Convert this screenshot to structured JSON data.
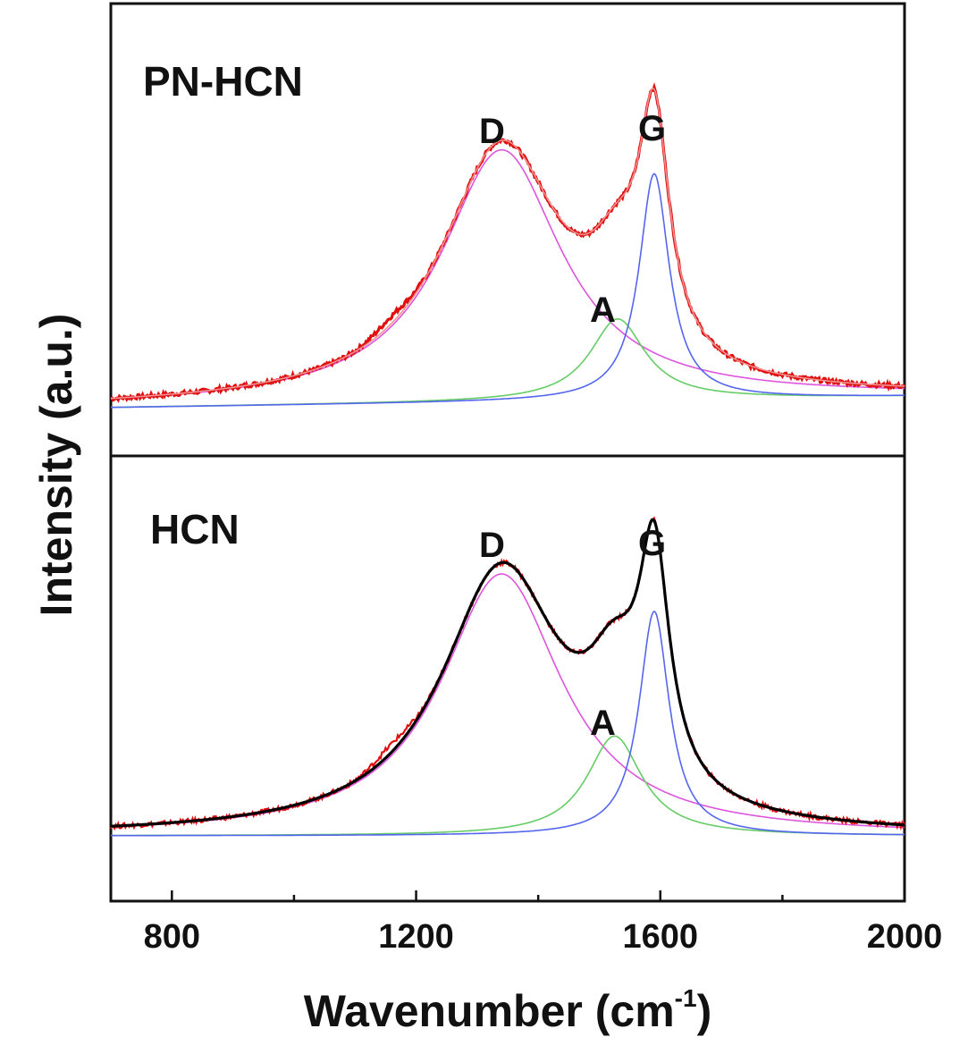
{
  "chart_data": {
    "type": "line",
    "xlabel": "Wavenumber (cm",
    "xlabel_sup": "-1",
    "xlabel_tail": ")",
    "ylabel": "Intensity (a.u.)",
    "xlim": [
      700,
      2000
    ],
    "xticks": [
      "800",
      "1200",
      "1600",
      "2000"
    ],
    "grid": false,
    "panels": [
      {
        "label": "PN-HCN",
        "peak_labels": [
          {
            "text": "D",
            "x": 1340
          },
          {
            "text": "A",
            "x": 1525
          },
          {
            "text": "G",
            "x": 1590
          }
        ],
        "components": [
          {
            "peak": "D",
            "center": 1340,
            "hwhm": 120,
            "amplitude": 0.68,
            "color": "#dd55dd"
          },
          {
            "peak": "A",
            "center": 1530,
            "hwhm": 55,
            "amplitude": 0.22,
            "color": "#66cc66"
          },
          {
            "peak": "G",
            "center": 1590,
            "hwhm": 30,
            "amplitude": 0.61,
            "color": "#5566ee"
          }
        ],
        "baseline_left": 0.0,
        "baseline_right": 0.03,
        "experimental_color": "#e01010",
        "fit_color": "#f09090"
      },
      {
        "label": "HCN",
        "peak_labels": [
          {
            "text": "D",
            "x": 1340
          },
          {
            "text": "A",
            "x": 1525
          },
          {
            "text": "G",
            "x": 1590
          }
        ],
        "components": [
          {
            "peak": "D",
            "center": 1340,
            "hwhm": 120,
            "amplitude": 0.63,
            "color": "#dd55dd"
          },
          {
            "peak": "A",
            "center": 1525,
            "hwhm": 55,
            "amplitude": 0.24,
            "color": "#66cc66"
          },
          {
            "peak": "G",
            "center": 1590,
            "hwhm": 30,
            "amplitude": 0.54,
            "color": "#5566ee"
          }
        ],
        "baseline_left": 0.0,
        "baseline_right": 0.0,
        "experimental_color": "#e01010",
        "fit_color": "#000000"
      }
    ]
  }
}
